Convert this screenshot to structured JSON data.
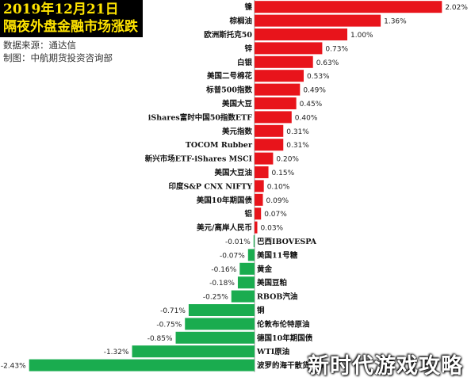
{
  "header": {
    "title_line1": "2019年12月21日",
    "title_line2": "隔夜外盘金融市场涨跌",
    "source_line1": "数据来源：通达信",
    "source_line2": "制图：中航期货投资咨询部"
  },
  "watermark": "新时代游戏攻略",
  "colors": {
    "positive": "#e8141b",
    "negative": "#1aac4f",
    "axis": "#9a9a9a"
  },
  "chart_data": {
    "type": "bar",
    "orientation": "horizontal",
    "title": "",
    "xlabel": "",
    "ylabel": "",
    "categories": [
      "镍",
      "棕榈油",
      "欧洲斯托克50",
      "锌",
      "白银",
      "美国二号棉花",
      "标普500指数",
      "美国大豆",
      "iShares富时中国50指数ETF",
      "美元指数",
      "TOCOM Rubber",
      "新兴市场ETF-iShares MSCI",
      "美国大豆油",
      "印度S&P CNX NIFTY",
      "美国10年期国债",
      "铝",
      "美元/离岸人民币",
      "巴西IBOVESPA",
      "美国11号糖",
      "黄金",
      "美国豆粕",
      "RBOB汽油",
      "铜",
      "伦敦布伦特原油",
      "德国10年期国债",
      "WTI原油",
      "波罗的海干散货指数"
    ],
    "values": [
      2.02,
      1.36,
      1.0,
      0.73,
      0.63,
      0.53,
      0.49,
      0.45,
      0.4,
      0.31,
      0.31,
      0.2,
      0.15,
      0.1,
      0.09,
      0.07,
      0.03,
      -0.01,
      -0.07,
      -0.16,
      -0.18,
      -0.25,
      -0.71,
      -0.75,
      -0.85,
      -1.32,
      -2.43
    ],
    "value_labels": [
      "2.02%",
      "1.36%",
      "1.00%",
      "0.73%",
      "0.63%",
      "0.53%",
      "0.49%",
      "0.45%",
      "0.40%",
      "0.31%",
      "0.31%",
      "0.20%",
      "0.15%",
      "0.10%",
      "0.09%",
      "0.07%",
      "0.03%",
      "-0.01%",
      "-0.07%",
      "-0.16%",
      "-0.18%",
      "-0.25%",
      "-0.71%",
      "-0.75%",
      "-0.85%",
      "-1.32%",
      "-2.43%"
    ],
    "grid": false,
    "legend": "none"
  }
}
